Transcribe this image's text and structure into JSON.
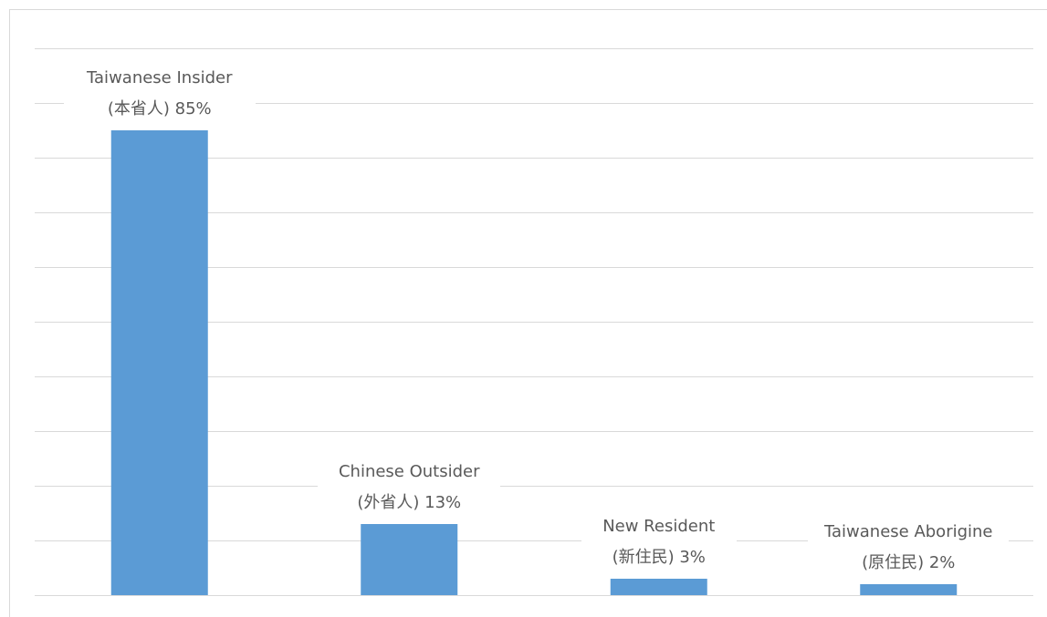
{
  "chart_data": {
    "type": "bar",
    "categories": [
      "Taiwanese Insider (本省人)",
      "Chinese Outsider (外省人)",
      "New Resident (新住民)",
      "Taiwanese Aborigine (原住民)"
    ],
    "values": [
      85,
      13,
      3,
      2
    ],
    "value_labels": [
      "85%",
      "13%",
      "3%",
      "2%"
    ],
    "color": "#5b9bd5",
    "ylim": [
      0,
      100
    ],
    "yticks": [
      0,
      10,
      20,
      30,
      40,
      50,
      60,
      70,
      80,
      90,
      100
    ],
    "grid": true
  }
}
